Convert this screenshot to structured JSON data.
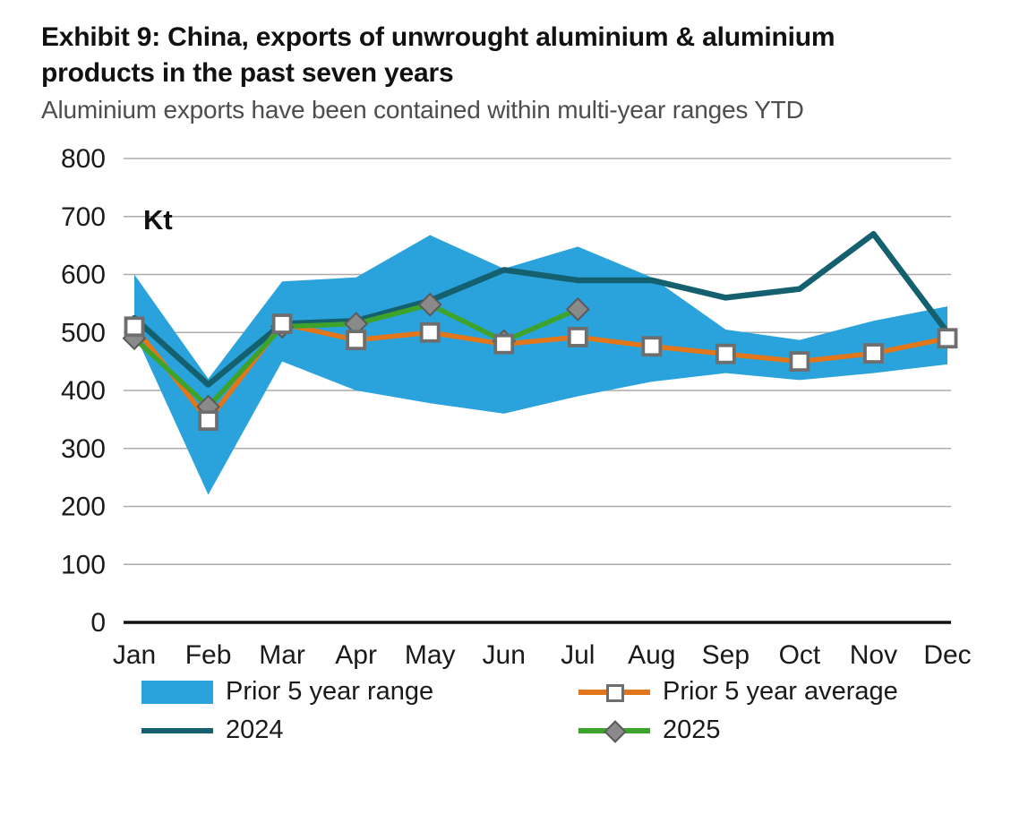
{
  "header": {
    "title": "Exhibit 9: China, exports of unwrought aluminium & aluminium products in the past seven years",
    "subtitle": "Aluminium exports have been contained within multi-year ranges YTD"
  },
  "chart_data": {
    "type": "area",
    "title": "Exhibit 9: China, exports of unwrought aluminium & aluminium products in the past seven years",
    "subtitle": "Aluminium exports have been contained within multi-year ranges YTD",
    "unit_label": "Kt",
    "categories": [
      "Jan",
      "Feb",
      "Mar",
      "Apr",
      "May",
      "Jun",
      "Jul",
      "Aug",
      "Sep",
      "Oct",
      "Nov",
      "Dec"
    ],
    "ylim": [
      0,
      800
    ],
    "ytick_step": 100,
    "yticks": [
      0,
      100,
      200,
      300,
      400,
      500,
      600,
      700,
      800
    ],
    "grid": "horizontal",
    "legend_position": "bottom",
    "series": [
      {
        "name": "Prior 5 year range",
        "type": "band",
        "color": "#2AA3DC",
        "max": [
          600,
          420,
          588,
          595,
          668,
          610,
          648,
          595,
          505,
          487,
          520,
          545
        ],
        "min": [
          500,
          220,
          450,
          400,
          378,
          360,
          390,
          415,
          430,
          418,
          430,
          445
        ]
      },
      {
        "name": "Prior 5 year average",
        "type": "line",
        "color": "#E2761B",
        "marker": "square",
        "values": [
          510,
          348,
          515,
          487,
          500,
          480,
          492,
          476,
          463,
          450,
          464,
          490
        ]
      },
      {
        "name": "2024",
        "type": "line",
        "color": "#14606F",
        "values": [
          525,
          410,
          515,
          520,
          555,
          608,
          590,
          590,
          560,
          575,
          670,
          500
        ]
      },
      {
        "name": "2025",
        "type": "line",
        "color": "#3EA32A",
        "marker": "diamond",
        "values": [
          490,
          372,
          510,
          515,
          548,
          485,
          540
        ]
      }
    ]
  }
}
